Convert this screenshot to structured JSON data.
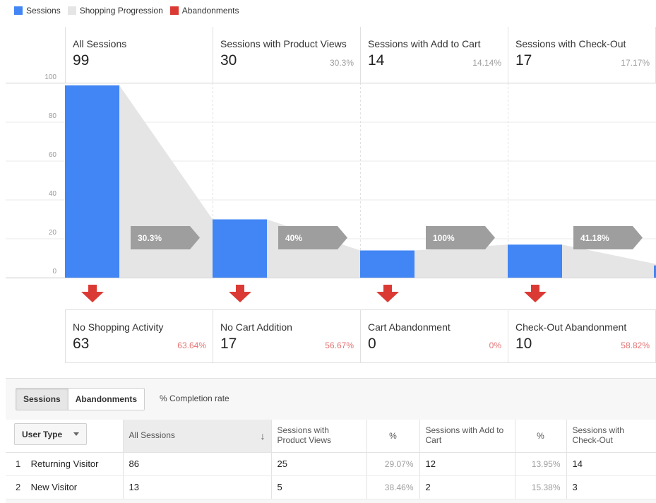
{
  "legend": [
    {
      "label": "Sessions",
      "color": "#4285f4"
    },
    {
      "label": "Shopping Progression",
      "color": "#e5e5e5"
    },
    {
      "label": "Abandonments",
      "color": "#db3a34"
    }
  ],
  "stages": [
    {
      "title": "All Sessions",
      "value": "99",
      "pct": ""
    },
    {
      "title": "Sessions with Product Views",
      "value": "30",
      "pct": "30.3%"
    },
    {
      "title": "Sessions with Add to Cart",
      "value": "14",
      "pct": "14.14%"
    },
    {
      "title": "Sessions with Check-Out",
      "value": "17",
      "pct": "17.17%"
    }
  ],
  "progression_labels": [
    "30.3%",
    "40%",
    "100%",
    "41.18%"
  ],
  "abandonments": [
    {
      "title": "No Shopping Activity",
      "value": "63",
      "pct": "63.64%"
    },
    {
      "title": "No Cart Addition",
      "value": "17",
      "pct": "56.67%"
    },
    {
      "title": "Cart Abandonment",
      "value": "0",
      "pct": "0%"
    },
    {
      "title": "Check-Out Abandonment",
      "value": "10",
      "pct": "58.82%"
    }
  ],
  "chart_data": {
    "type": "bar",
    "categories": [
      "All Sessions",
      "Sessions with Product Views",
      "Sessions with Add to Cart",
      "Sessions with Check-Out"
    ],
    "series": [
      {
        "name": "Sessions",
        "values": [
          99,
          30,
          14,
          17
        ]
      }
    ],
    "next_stage_tail": 7,
    "yticks": [
      "0",
      "20",
      "40",
      "60",
      "80",
      "100"
    ],
    "ylim": [
      0,
      100
    ],
    "grid": true,
    "colors": {
      "sessions": "#4285f4",
      "progression": "#e5e5e5",
      "abandonment": "#db3a34",
      "label_chip": "#9e9e9e"
    }
  },
  "table": {
    "tabs": [
      "Sessions",
      "Abandonments"
    ],
    "completion_label": "% Completion rate",
    "dimension": "User Type",
    "headers": {
      "all_sessions": "All Sessions",
      "product_views": "Sessions with Product Views",
      "pct1": "%",
      "add_to_cart": "Sessions with Add to Cart",
      "pct2": "%",
      "checkout": "Sessions with Check-Out"
    },
    "rows": [
      {
        "num": "1",
        "type": "Returning Visitor",
        "all_sessions": "86",
        "product_views": "25",
        "pct1": "29.07%",
        "add_to_cart": "12",
        "pct2": "13.95%",
        "checkout": "14"
      },
      {
        "num": "2",
        "type": "New Visitor",
        "all_sessions": "13",
        "product_views": "5",
        "pct1": "38.46%",
        "add_to_cart": "2",
        "pct2": "15.38%",
        "checkout": "3"
      }
    ]
  }
}
